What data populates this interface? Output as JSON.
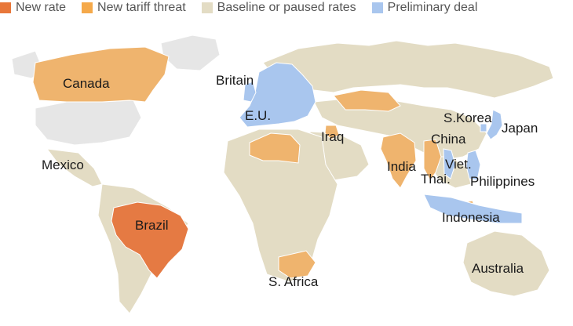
{
  "legend": [
    {
      "label": "New rate",
      "color": "#e8773a"
    },
    {
      "label": "New tariff threat",
      "color": "#f5a94a"
    },
    {
      "label": "Baseline or paused rates",
      "color": "#e3dcc4"
    },
    {
      "label": "Preliminary deal",
      "color": "#a9c6ee"
    }
  ],
  "colors": {
    "new_rate": "#e57a43",
    "new_threat": "#efb46e",
    "baseline": "#e3dcc4",
    "preliminary_deal": "#a9c6ee",
    "no_data": "#e6e6e6",
    "border": "#ffffff"
  },
  "countries": {
    "canada": "Canada",
    "britain": "Britain",
    "eu": "E.U.",
    "mexico": "Mexico",
    "iraq": "Iraq",
    "india": "India",
    "china": "China",
    "south_korea": "S.Korea",
    "japan": "Japan",
    "vietnam": "Viet.",
    "thailand": "Thai.",
    "philippines": "Philippines",
    "indonesia": "Indonesia",
    "brazil": "Brazil",
    "south_africa": "S. Africa",
    "australia": "Australia"
  }
}
